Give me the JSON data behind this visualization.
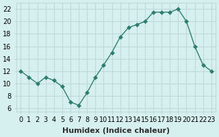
{
  "x": [
    0,
    1,
    2,
    3,
    4,
    5,
    6,
    7,
    8,
    9,
    10,
    11,
    12,
    13,
    14,
    15,
    16,
    17,
    18,
    19,
    20,
    21,
    22,
    23
  ],
  "y": [
    12,
    11,
    10,
    11,
    10.5,
    9.5,
    7,
    6.5,
    8.5,
    11,
    13,
    15,
    17.5,
    19,
    19.5,
    20,
    21.5,
    21.5,
    21.5,
    22,
    20,
    16,
    13,
    12
  ],
  "line_color": "#2e7d6e",
  "marker": "D",
  "marker_size": 3,
  "bg_color": "#d6f0ef",
  "grid_color": "#c0d8d8",
  "xlabel": "Humidex (Indice chaleur)",
  "ylabel": "",
  "xlim": [
    -0.5,
    23.5
  ],
  "ylim": [
    5.5,
    23
  ],
  "yticks": [
    6,
    8,
    10,
    12,
    14,
    16,
    18,
    20,
    22
  ],
  "xtick_labels": [
    "0",
    "1",
    "2",
    "3",
    "4",
    "5",
    "6",
    "7",
    "8",
    "9",
    "10",
    "11",
    "12",
    "13",
    "14",
    "15",
    "16",
    "17",
    "18",
    "19",
    "20",
    "21",
    "22",
    "23"
  ],
  "xlabel_fontsize": 8,
  "tick_fontsize": 7
}
